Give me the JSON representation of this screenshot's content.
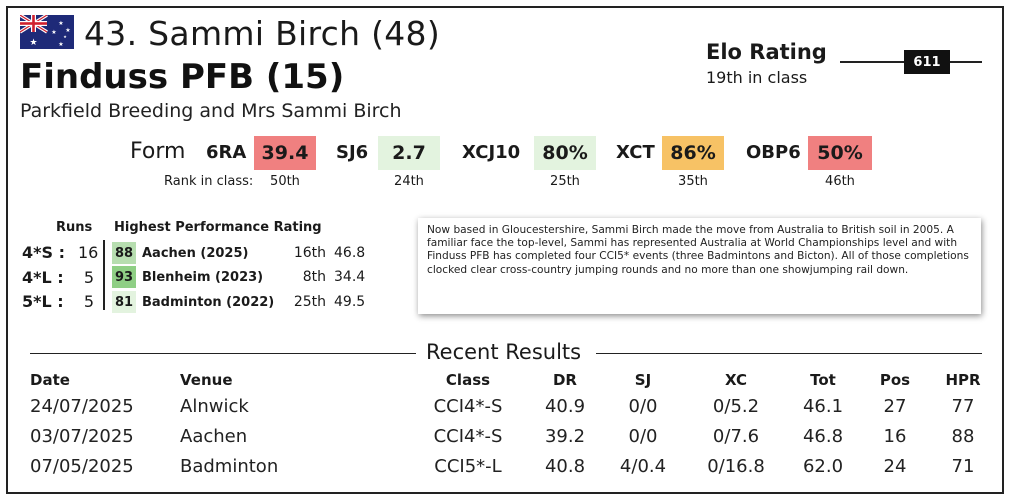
{
  "header": {
    "flag_icon": "australia-flag-icon",
    "rider": "43. Sammi Birch (48)",
    "horse": "Finduss PFB (15)",
    "owner": "Parkfield Breeding and Mrs Sammi Birch"
  },
  "elo": {
    "title": "Elo Rating",
    "rank": "19th in class",
    "value": "611"
  },
  "form": {
    "label": "Form",
    "rank_label": "Rank in class:",
    "items": [
      {
        "code": "6RA",
        "value": "39.4",
        "rank": "50th",
        "color": "#f08080"
      },
      {
        "code": "SJ6",
        "value": "2.7",
        "rank": "24th",
        "color": "#e3f3df"
      },
      {
        "code": "XCJ10",
        "value": "80%",
        "rank": "25th",
        "color": "#e3f3df"
      },
      {
        "code": "XCT",
        "value": "86%",
        "rank": "35th",
        "color": "#f7c265"
      },
      {
        "code": "OBP6",
        "value": "50%",
        "rank": "46th",
        "color": "#f08080"
      }
    ]
  },
  "hpr": {
    "runs_header": "Runs",
    "rating_header": "Highest Performance Rating",
    "rows": [
      {
        "level": "4*S :",
        "runs": "16",
        "rating": "88",
        "event": "Aachen (2025)",
        "pos": "16th",
        "score": "46.8",
        "color": "#b7deb0"
      },
      {
        "level": "4*L :",
        "runs": "5",
        "rating": "93",
        "event": "Blenheim (2023)",
        "pos": "8th",
        "score": "34.4",
        "color": "#8fcf85"
      },
      {
        "level": "5*L :",
        "runs": "5",
        "rating": "81",
        "event": "Badminton (2022)",
        "pos": "25th",
        "score": "49.5",
        "color": "#e3f3df"
      }
    ]
  },
  "bio": {
    "text": "Now based in Gloucestershire, Sammi Birch made the move from Australia to British soil in 2005. A familiar face the top-level, Sammi has represented Australia at World Championships level and with Finduss PFB has completed four CCI5* events (three Badmintons and Bicton). All of those completions clocked clear cross-country jumping rounds and no more than one showjumping rail down."
  },
  "results": {
    "title": "Recent Results",
    "headers": {
      "date": "Date",
      "venue": "Venue",
      "class": "Class",
      "dr": "DR",
      "sj": "SJ",
      "xc": "XC",
      "tot": "Tot",
      "pos": "Pos",
      "hpr": "HPR"
    },
    "rows": [
      {
        "date": "24/07/2025",
        "venue": "Alnwick",
        "class": "CCI4*-S",
        "dr": "40.9",
        "sj": "0/0",
        "xc": "0/5.2",
        "tot": "46.1",
        "pos": "27",
        "hpr": "77"
      },
      {
        "date": "03/07/2025",
        "venue": "Aachen",
        "class": "CCI4*-S",
        "dr": "39.2",
        "sj": "0/0",
        "xc": "0/7.6",
        "tot": "46.8",
        "pos": "16",
        "hpr": "88"
      },
      {
        "date": "07/05/2025",
        "venue": "Badminton",
        "class": "CCI5*-L",
        "dr": "40.8",
        "sj": "4/0.4",
        "xc": "0/16.8",
        "tot": "62.0",
        "pos": "24",
        "hpr": "71"
      }
    ]
  }
}
